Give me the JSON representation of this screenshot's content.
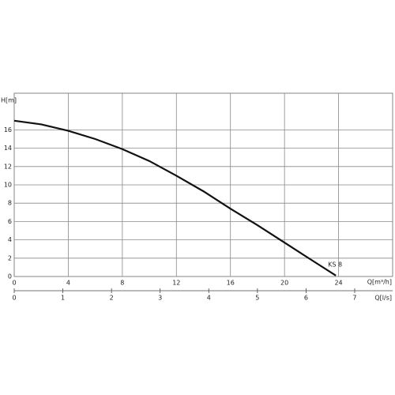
{
  "chart_data": {
    "type": "line",
    "y_label": "H[m]",
    "x_label": "Q[m³/h]",
    "x2_label": "Q[l/s]",
    "xlim": [
      0,
      28
    ],
    "xticks": [
      0,
      4,
      8,
      12,
      16,
      20,
      24
    ],
    "ylim": [
      0,
      20
    ],
    "yticks": [
      0,
      2,
      4,
      6,
      8,
      10,
      12,
      14,
      16
    ],
    "x2lim": [
      0,
      7.78
    ],
    "x2ticks": [
      0,
      1,
      2,
      3,
      4,
      5,
      6,
      7
    ],
    "grid": true,
    "x": [
      0,
      2,
      4,
      6,
      8,
      10,
      12,
      14,
      16,
      18,
      20,
      22,
      23.8
    ],
    "series": [
      {
        "name": "KS 8",
        "color": "#111111",
        "values": [
          17,
          16.6,
          15.9,
          15,
          13.9,
          12.6,
          11,
          9.3,
          7.4,
          5.6,
          3.7,
          1.8,
          0.1
        ]
      }
    ]
  }
}
